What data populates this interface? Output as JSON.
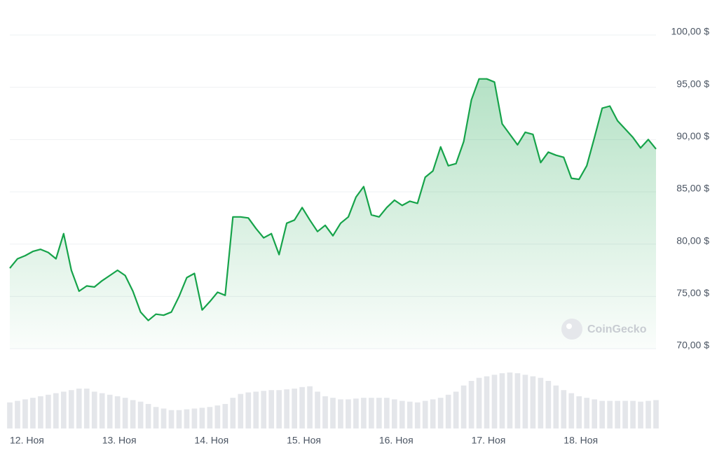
{
  "chart_data": {
    "type": "line",
    "categories": [
      "12. Ноя",
      null,
      null,
      null,
      null,
      null,
      null,
      null,
      null,
      null,
      null,
      null,
      "13. Ноя",
      null,
      null,
      null,
      null,
      null,
      null,
      null,
      null,
      null,
      null,
      null,
      "14. Ноя",
      null,
      null,
      null,
      null,
      null,
      null,
      null,
      null,
      null,
      null,
      null,
      "15. Ноя",
      null,
      null,
      null,
      null,
      null,
      null,
      null,
      null,
      null,
      null,
      null,
      "16. Ноя",
      null,
      null,
      null,
      null,
      null,
      null,
      null,
      null,
      null,
      null,
      null,
      "17. Ноя",
      null,
      null,
      null,
      null,
      null,
      null,
      null,
      null,
      null,
      null,
      null,
      "18. Ноя",
      null,
      null,
      null,
      null,
      null,
      null,
      null,
      null,
      null,
      null,
      null,
      null
    ],
    "values": [
      77.7,
      78.6,
      78.9,
      79.3,
      79.5,
      79.2,
      78.6,
      81.0,
      77.5,
      75.5,
      76.0,
      75.9,
      76.5,
      77.0,
      77.5,
      77.0,
      75.5,
      73.5,
      72.7,
      73.3,
      73.2,
      73.5,
      75.0,
      76.8,
      77.2,
      73.7,
      74.5,
      75.4,
      75.1,
      82.6,
      82.6,
      82.5,
      81.5,
      80.6,
      81.0,
      79.0,
      82.0,
      82.3,
      83.5,
      82.3,
      81.2,
      81.8,
      80.8,
      82.0,
      82.6,
      84.5,
      85.5,
      82.8,
      82.6,
      83.5,
      84.2,
      83.7,
      84.1,
      83.9,
      86.4,
      87.0,
      89.3,
      87.5,
      87.7,
      89.8,
      93.8,
      95.8,
      95.8,
      95.5,
      91.5,
      90.5,
      89.5,
      90.7,
      90.5,
      87.8,
      88.8,
      88.5,
      88.3,
      86.3,
      86.2,
      87.5,
      90.2,
      93.0,
      93.2,
      91.8,
      91.0,
      90.2,
      89.2,
      90.0,
      89.1
    ],
    "volumes": [
      34,
      36,
      38,
      40,
      42,
      44,
      46,
      48,
      50,
      52,
      52,
      48,
      46,
      44,
      42,
      40,
      37,
      35,
      32,
      28,
      26,
      24,
      24,
      25,
      26,
      27,
      28,
      30,
      32,
      40,
      45,
      47,
      48,
      49,
      50,
      50,
      51,
      52,
      54,
      55,
      48,
      42,
      40,
      38,
      38,
      39,
      40,
      40,
      40,
      40,
      38,
      36,
      35,
      34,
      36,
      38,
      40,
      44,
      48,
      56,
      62,
      66,
      68,
      70,
      72,
      73,
      72,
      70,
      68,
      66,
      62,
      56,
      50,
      46,
      42,
      40,
      38,
      36,
      36,
      36,
      36,
      36,
      35,
      36,
      37
    ],
    "color": "#16a34a",
    "volume_color": "#e4e6ea",
    "ylim": [
      70,
      100
    ],
    "yticks": [
      {
        "value": 70,
        "label": "70,00 $"
      },
      {
        "value": 75,
        "label": "75,00 $"
      },
      {
        "value": 80,
        "label": "80,00 $"
      },
      {
        "value": 85,
        "label": "85,00 $"
      },
      {
        "value": 90,
        "label": "90,00 $"
      },
      {
        "value": 95,
        "label": "95,00 $"
      },
      {
        "value": 100,
        "label": "100,00 $"
      }
    ],
    "grid": true,
    "watermark": "CoinGecko"
  }
}
